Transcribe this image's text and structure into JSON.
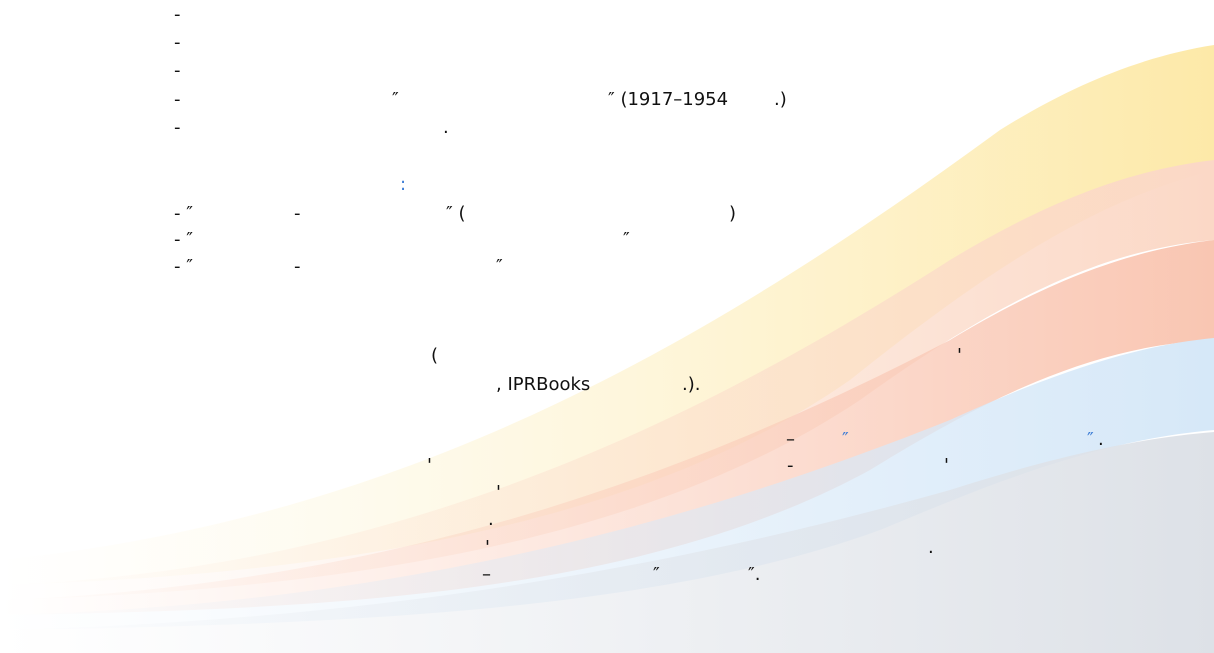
{
  "texts": [
    "-",
    "-",
    "-",
    "-",
    "″",
    "″ (1917–1954",
    ".)",
    "-",
    ".",
    ":",
    "- ″",
    "-",
    "″ (",
    ")",
    "- ″",
    "″",
    "- ″",
    "-",
    "″",
    "(",
    "'",
    ", IPRBooks",
    ".).",
    "–",
    "″",
    "″",
    ".",
    "'",
    "-",
    "'",
    "'",
    ".",
    "'",
    ".",
    "–",
    "″",
    "″."
  ]
}
